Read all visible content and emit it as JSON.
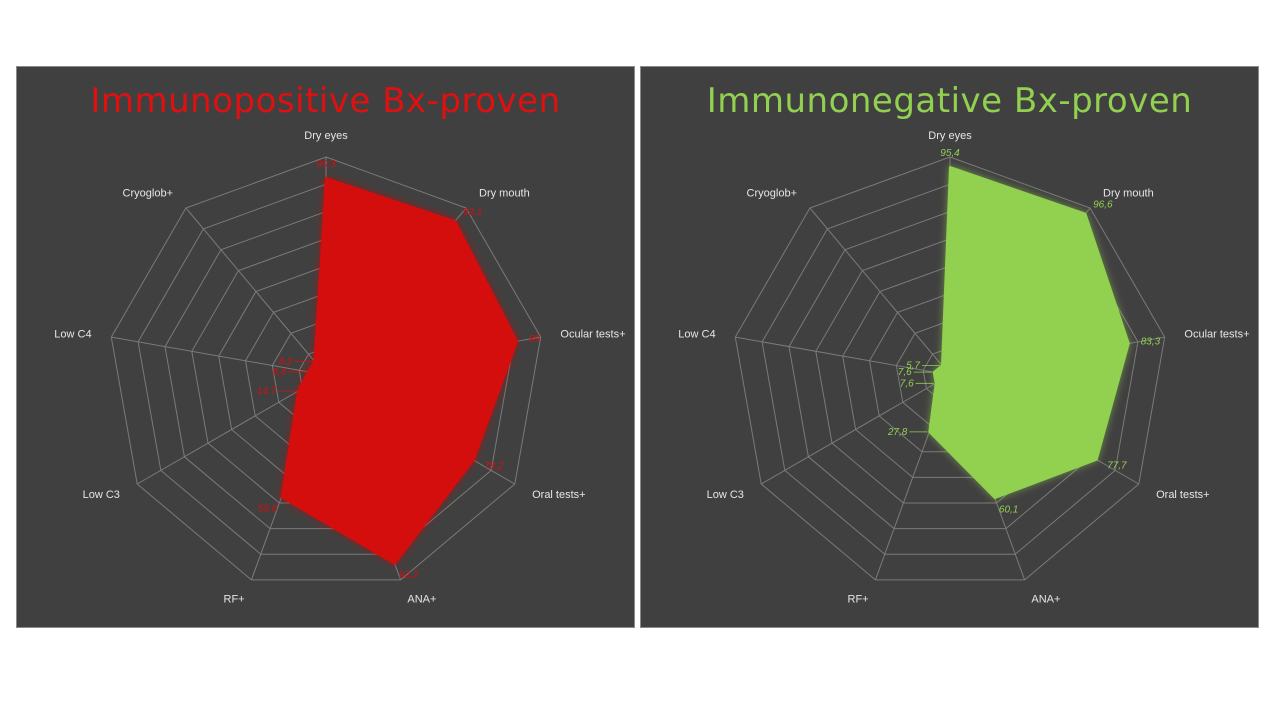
{
  "chart_data": [
    {
      "type": "radar",
      "title": "Immunopositive Bx-proven",
      "categories": [
        "Dry eyes",
        "Dry mouth",
        "Ocular tests+",
        "Oral tests+",
        "ANA+",
        "RF+",
        "Low C3",
        "Low C4",
        "Cryoglob+"
      ],
      "values": [
        90.3,
        92.1,
        89.0,
        78.2,
        92.2,
        59.6,
        14.7,
        8.4,
        8.2
      ],
      "value_labels": [
        "90,3",
        "92,1",
        "89",
        "78,2",
        "92,2",
        "59,6",
        "14,7",
        "8,4",
        "8,2"
      ],
      "rlim": [
        0,
        100
      ],
      "grid_rings": 8,
      "color": "#d40f0f",
      "title_color": "#e01010"
    },
    {
      "type": "radar",
      "title": "Immunonegative Bx-proven",
      "categories": [
        "Dry eyes",
        "Dry mouth",
        "Ocular tests+",
        "Oral tests+",
        "ANA+",
        "RF+",
        "Low C3",
        "Low C4",
        "Cryoglob+"
      ],
      "values": [
        95.4,
        96.6,
        83.3,
        77.7,
        60.1,
        27.8,
        7.6,
        7.6,
        5.7
      ],
      "value_labels": [
        "95,4",
        "96,6",
        "83,3",
        "77,7",
        "60,1",
        "27,8",
        "7,6",
        "7,6",
        "5,7"
      ],
      "rlim": [
        0,
        100
      ],
      "grid_rings": 8,
      "color": "#92d050",
      "title_color": "#92d050"
    }
  ]
}
